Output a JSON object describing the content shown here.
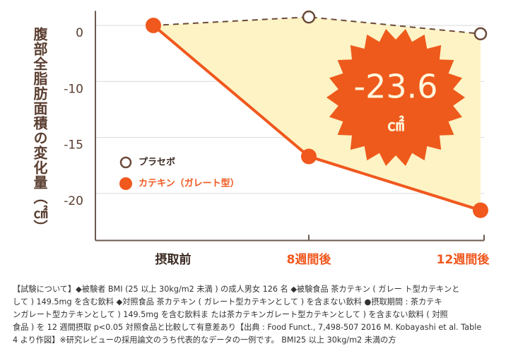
{
  "chart_data": {
    "type": "line",
    "y_label": "腹部全脂肪面積の変化量（㎠）",
    "categories": [
      "摂取前",
      "8週間後",
      "12週間後"
    ],
    "series": [
      {
        "name": "プラセボ",
        "color": "#6b4a3a",
        "values": [
          0,
          1.5,
          -1.5
        ]
      },
      {
        "name": "カテキン（ガレート型）",
        "color": "#f0581e",
        "values": [
          0,
          -16.7,
          -21.5
        ]
      }
    ],
    "ylim": [
      2.6,
      -24.2
    ],
    "yticks": [
      0,
      -10,
      -15,
      -20
    ],
    "grid": true,
    "fill_color": "#fdf3c4",
    "badge": {
      "value": "-23.6",
      "unit": "㎠",
      "color": "#ee5a1c"
    },
    "footnote": [
      "【試験について】◆被験者 BMI (25 以上 30kg/m2 未満 ) の成人男女 126 名 ◆被験食品 茶カテキン ( ガレー ト型カテキンと",
      "して ) 149.5mg を含む飲料 ◆対照食品 茶カテキン ( ガレート型カテキンとして ) を含まない飲料 ●摂取期間 : 茶カテキ",
      "ンガレート型カテキンとして ) 149.5mg を含む飲料ま たは茶カテキンガレート型カテキンとして ) を含まない飲料 ( 対照",
      "食品 ) を 12 週間摂取 p<0.05 対照食品と比較して有意差あり【出典 : Food Funct., 7,498-507 2016 M. Kobayashi et al. Table",
      "4 より作図】※研究レビューの採用論文のうち代表的なデータの一例です。 BMI25 以上 30kg/m2 未満の方"
    ]
  }
}
